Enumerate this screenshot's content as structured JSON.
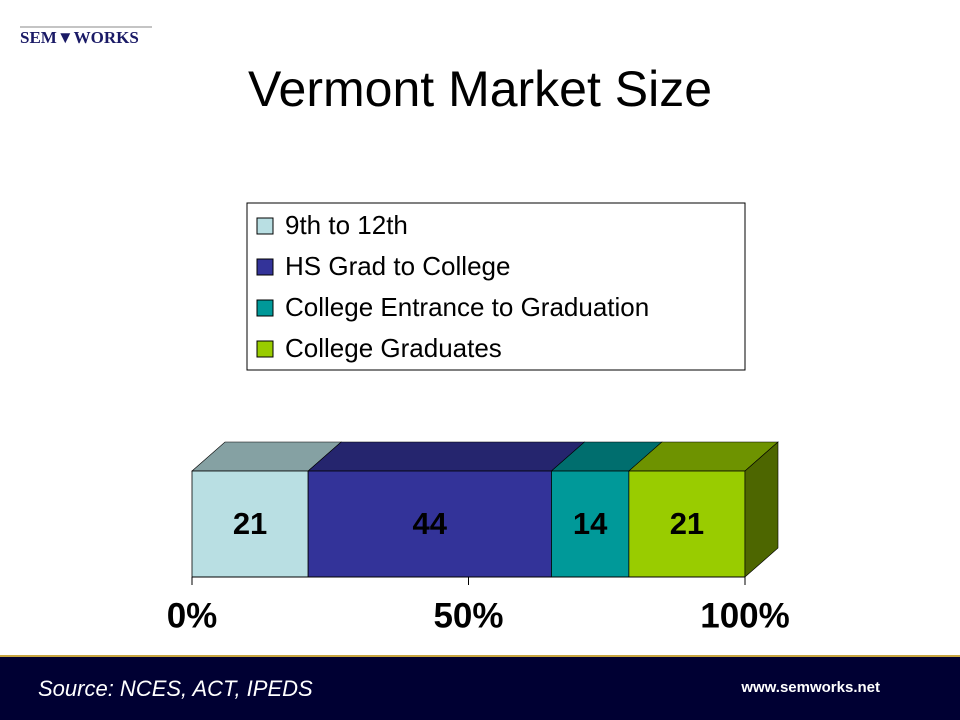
{
  "logo": "SEM▼WORKS",
  "footer": {
    "source": "Source: NCES, ACT, IPEDS",
    "url": "www.semworks.net"
  },
  "chart_data": {
    "type": "bar",
    "orientation": "horizontal",
    "stacked": true,
    "title": "Vermont Market Size",
    "categories": [
      null
    ],
    "series": [
      {
        "name": "9th to 12th",
        "color": "#b9dfe3",
        "values": [
          21
        ]
      },
      {
        "name": "HS Grad to College",
        "color": "#333399",
        "values": [
          44
        ]
      },
      {
        "name": "College Entrance to Graduation",
        "color": "#009999",
        "values": [
          14
        ]
      },
      {
        "name": "College Graduates",
        "color": "#99cc00",
        "values": [
          21
        ]
      }
    ],
    "xlim": [
      0,
      100
    ],
    "xticks": [
      {
        "value": 0,
        "label": "0%"
      },
      {
        "value": 50,
        "label": "50%"
      },
      {
        "value": 100,
        "label": "100%"
      }
    ],
    "legend": "top"
  }
}
